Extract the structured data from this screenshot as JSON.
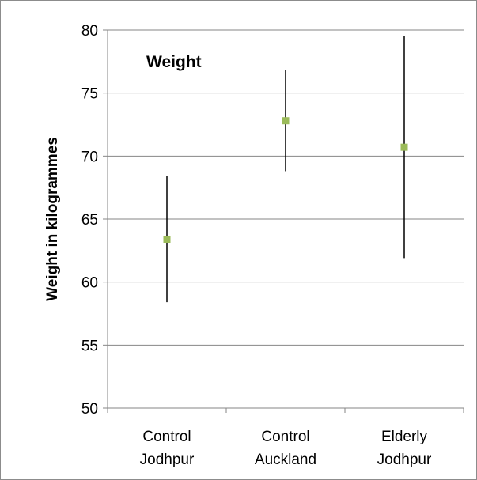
{
  "chart_data": {
    "type": "scatter",
    "title": "Weight",
    "xlabel": "",
    "ylabel": "Weight in kilogrammes",
    "ylim": [
      50,
      80
    ],
    "yticks": [
      "50",
      "55",
      "60",
      "65",
      "70",
      "75",
      "80"
    ],
    "grid": true,
    "legend": "none",
    "categories": [
      [
        "Control",
        "Jodhpur"
      ],
      [
        "Control",
        "Auckland"
      ],
      [
        "Elderly",
        "Jodhpur"
      ]
    ],
    "series": [
      {
        "values": [
          63.4,
          72.8,
          70.7
        ],
        "error_low": [
          58.4,
          68.8,
          61.9
        ],
        "error_high": [
          68.4,
          76.8,
          79.5
        ]
      }
    ],
    "colors": {
      "marker": "#9bbb59",
      "error_bar": "#000000",
      "gridline": "#868686",
      "axis": "#868686"
    }
  }
}
